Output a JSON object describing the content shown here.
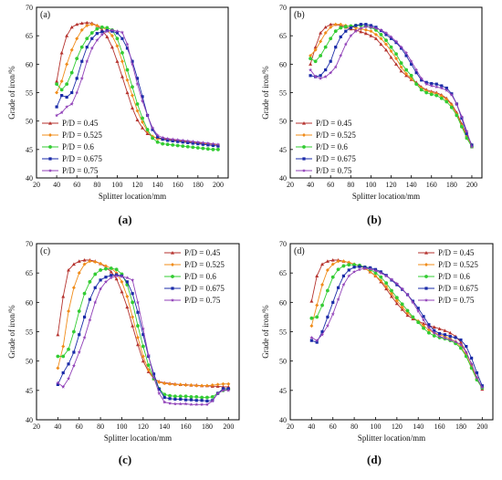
{
  "figure": {
    "captions": [
      "(a)",
      "(b)",
      "(c)",
      "(d)"
    ]
  },
  "chart_data": [
    {
      "type": "line",
      "panel": "(a)",
      "xlabel": "Splitter location/mm",
      "ylabel": "Grade of iron/%",
      "xlim": [
        20,
        210
      ],
      "ylim": [
        40,
        70
      ],
      "xticks": [
        20,
        40,
        60,
        80,
        100,
        120,
        140,
        160,
        180,
        200
      ],
      "yticks": [
        40,
        45,
        50,
        55,
        60,
        65,
        70
      ],
      "legend_position": "lower-left",
      "x": [
        40,
        45,
        50,
        55,
        60,
        65,
        70,
        75,
        80,
        85,
        90,
        95,
        100,
        105,
        110,
        115,
        120,
        125,
        130,
        135,
        140,
        145,
        150,
        155,
        160,
        165,
        170,
        175,
        180,
        185,
        190,
        195,
        200
      ],
      "series": [
        {
          "name": "P/D = 0.45",
          "color": "#b5322d",
          "marker": "triangle",
          "values": [
            57,
            62,
            65,
            66.5,
            67,
            67.2,
            67.3,
            67.2,
            66.8,
            66,
            64.8,
            63,
            60.5,
            57.8,
            55,
            52.3,
            50.2,
            48.8,
            47.8,
            47.3,
            47,
            46.9,
            46.8,
            46.7,
            46.6,
            46.5,
            46.4,
            46.3,
            46.2,
            46.1,
            46,
            45.9,
            45.8
          ]
        },
        {
          "name": "P/D = 0.525",
          "color": "#f08c1a",
          "marker": "diamond",
          "values": [
            55,
            57,
            60,
            62.5,
            64.5,
            66,
            66.8,
            67,
            66.8,
            66.5,
            66,
            65,
            63.2,
            60.5,
            57.2,
            54.5,
            51.8,
            49.8,
            48.2,
            47.3,
            46.9,
            46.8,
            46.7,
            46.6,
            46.5,
            46.4,
            46.3,
            46.2,
            46.1,
            46,
            46,
            45.9,
            45.8
          ]
        },
        {
          "name": "P/D = 0.6",
          "color": "#33cc33",
          "marker": "circle",
          "values": [
            56.5,
            55.5,
            56.5,
            58.5,
            61,
            63,
            64.5,
            65.5,
            66.2,
            66.5,
            66.4,
            66,
            64.5,
            62,
            59,
            56,
            53,
            50.5,
            48.5,
            47,
            46.3,
            46,
            45.9,
            45.8,
            45.7,
            45.6,
            45.5,
            45.4,
            45.3,
            45.2,
            45.1,
            45,
            45
          ]
        },
        {
          "name": "P/D = 0.675",
          "color": "#1a2ba8",
          "marker": "square",
          "values": [
            52.5,
            54.5,
            54.2,
            55,
            57.5,
            60.5,
            63,
            64.5,
            65.4,
            65.7,
            65.9,
            65.8,
            65.5,
            64.5,
            62.8,
            60.5,
            57.5,
            54.3,
            51,
            48.5,
            47.2,
            46.8,
            46.6,
            46.5,
            46.4,
            46.3,
            46.2,
            46.1,
            46,
            45.9,
            45.8,
            45.7,
            45.6
          ]
        },
        {
          "name": "P/D = 0.75",
          "color": "#9040b8",
          "marker": "star",
          "values": [
            51,
            51.5,
            52.5,
            53,
            55,
            57.5,
            60.5,
            62.8,
            64.2,
            65.2,
            65.8,
            66,
            65.8,
            65.6,
            63.5,
            60,
            56.5,
            53.5,
            51,
            48.8,
            47.5,
            47.1,
            46.9,
            46.8,
            46.7,
            46.6,
            46.5,
            46.4,
            46.3,
            46.2,
            46.1,
            46,
            45.9
          ]
        }
      ]
    },
    {
      "type": "line",
      "panel": "(b)",
      "xlabel": "Splitter location/mm",
      "ylabel": "Grade of iron/%",
      "xlim": [
        20,
        210
      ],
      "ylim": [
        40,
        70
      ],
      "xticks": [
        20,
        40,
        60,
        80,
        100,
        120,
        140,
        160,
        180,
        200
      ],
      "yticks": [
        40,
        45,
        50,
        55,
        60,
        65,
        70
      ],
      "legend_position": "lower-left",
      "x": [
        40,
        45,
        50,
        55,
        60,
        65,
        70,
        75,
        80,
        85,
        90,
        95,
        100,
        105,
        110,
        115,
        120,
        125,
        130,
        135,
        140,
        145,
        150,
        155,
        160,
        165,
        170,
        175,
        180,
        185,
        190,
        195,
        200
      ],
      "series": [
        {
          "name": "P/D = 0.45",
          "color": "#b5322d",
          "marker": "triangle",
          "values": [
            60,
            63,
            65.5,
            66.5,
            67,
            67,
            66.8,
            66.5,
            66.2,
            66,
            65.7,
            65.4,
            65,
            64.5,
            63.5,
            62.5,
            61.2,
            60,
            58.8,
            58,
            57.3,
            56.8,
            56,
            55.5,
            55.2,
            55,
            54.6,
            54,
            53,
            51.5,
            49.5,
            47.5,
            45.5
          ]
        },
        {
          "name": "P/D = 0.525",
          "color": "#f08c1a",
          "marker": "diamond",
          "values": [
            61.5,
            62.5,
            64,
            65.5,
            66.5,
            67,
            67,
            66.8,
            66.6,
            66.4,
            66.2,
            66,
            65.8,
            65.2,
            64.5,
            63.5,
            62.3,
            61,
            59.5,
            58.3,
            57.5,
            56.5,
            55.8,
            55.3,
            55,
            54.8,
            54.4,
            53.8,
            52.8,
            51.2,
            49.2,
            47.2,
            45.8
          ]
        },
        {
          "name": "P/D = 0.6",
          "color": "#33cc33",
          "marker": "circle",
          "values": [
            61,
            60.5,
            61.5,
            63,
            64.5,
            65.8,
            66.4,
            66.6,
            66.7,
            66.8,
            66.8,
            66.7,
            66.5,
            66,
            65.2,
            64.2,
            63,
            61.8,
            60.2,
            59,
            58,
            56.5,
            55.5,
            55,
            54.7,
            54.5,
            54,
            53.4,
            52.4,
            51,
            49,
            47,
            45.5
          ]
        },
        {
          "name": "P/D = 0.675",
          "color": "#1a2ba8",
          "marker": "square",
          "values": [
            58,
            57.8,
            58,
            59,
            60.5,
            63,
            64.8,
            65.8,
            66.4,
            66.8,
            67,
            67,
            66.8,
            66.5,
            65.9,
            65.2,
            64.5,
            63.8,
            62.8,
            61.5,
            60,
            58.5,
            57.2,
            56.8,
            56.6,
            56.5,
            56.2,
            55.8,
            54.8,
            53,
            50.5,
            47.8,
            45.8
          ]
        },
        {
          "name": "P/D = 0.75",
          "color": "#9040b8",
          "marker": "star",
          "values": [
            59,
            57.8,
            57.5,
            57.8,
            58.5,
            59.5,
            61.5,
            63.5,
            65,
            65.8,
            66.3,
            66.6,
            66.5,
            66.3,
            66,
            65.5,
            64.8,
            64,
            63,
            62,
            60.5,
            59,
            57.5,
            56.5,
            56.2,
            56,
            55.8,
            55.4,
            54.6,
            53,
            50.8,
            48.2,
            45.5
          ]
        }
      ]
    },
    {
      "type": "line",
      "panel": "(c)",
      "xlabel": "Splitter location/mm",
      "ylabel": "Grade of iron/%",
      "xlim": [
        20,
        210
      ],
      "ylim": [
        40,
        70
      ],
      "xticks": [
        20,
        40,
        60,
        80,
        100,
        120,
        140,
        160,
        180,
        200
      ],
      "yticks": [
        40,
        45,
        50,
        55,
        60,
        65,
        70
      ],
      "legend_position": "top-right",
      "x": [
        40,
        45,
        50,
        55,
        60,
        65,
        70,
        75,
        80,
        85,
        90,
        95,
        100,
        105,
        110,
        115,
        120,
        125,
        130,
        135,
        140,
        145,
        150,
        155,
        160,
        165,
        170,
        175,
        180,
        185,
        190,
        195,
        200
      ],
      "series": [
        {
          "name": "P/D = 0.45",
          "color": "#b5322d",
          "marker": "triangle",
          "values": [
            54.5,
            61,
            65.5,
            66.5,
            67,
            67.2,
            67.2,
            67,
            66.6,
            66,
            65.2,
            64,
            61.8,
            59.2,
            56,
            52.8,
            50,
            48.2,
            47,
            46.5,
            46.3,
            46.2,
            46.1,
            46,
            46,
            45.9,
            45.9,
            45.8,
            45.8,
            45.7,
            45.7,
            45.6,
            45.6
          ]
        },
        {
          "name": "P/D = 0.525",
          "color": "#f08c1a",
          "marker": "diamond",
          "values": [
            48.8,
            52.5,
            58.5,
            62.5,
            65,
            66.5,
            67,
            66.9,
            66.6,
            66.2,
            65.8,
            65,
            63.5,
            61,
            57.5,
            54,
            50.8,
            48.5,
            47,
            46.4,
            46.2,
            46.1,
            46,
            46,
            45.9,
            45.9,
            45.8,
            45.8,
            45.8,
            45.9,
            46,
            46.1,
            46.1
          ]
        },
        {
          "name": "P/D = 0.6",
          "color": "#33cc33",
          "marker": "circle",
          "values": [
            50.8,
            50.8,
            52,
            55,
            58.5,
            61.5,
            63.5,
            64.8,
            65.5,
            65.7,
            65.8,
            65.6,
            64.8,
            63,
            60,
            56,
            52.5,
            49.3,
            47,
            45.3,
            44.3,
            44.1,
            44,
            44,
            44,
            43.9,
            43.9,
            43.8,
            43.8,
            43.9,
            44.5,
            45,
            45.2
          ]
        },
        {
          "name": "P/D = 0.675",
          "color": "#1a2ba8",
          "marker": "square",
          "values": [
            46,
            48,
            49.5,
            51.5,
            54.5,
            57.5,
            60.5,
            62.5,
            63.8,
            64.3,
            64.6,
            64.7,
            64.5,
            63.5,
            61.5,
            58.3,
            54.5,
            50.8,
            47.8,
            45.2,
            43.8,
            43.6,
            43.5,
            43.5,
            43.4,
            43.4,
            43.3,
            43.3,
            43.2,
            43.3,
            44.5,
            45.3,
            45.3
          ]
        },
        {
          "name": "P/D = 0.75",
          "color": "#9040b8",
          "marker": "star",
          "values": [
            46.3,
            45.6,
            47,
            49.2,
            51.5,
            54,
            57,
            60,
            62.3,
            63.5,
            64.2,
            64.5,
            64.4,
            64.2,
            63.8,
            60,
            55.5,
            51,
            47.2,
            44.5,
            43,
            42.8,
            42.7,
            42.7,
            42.7,
            42.6,
            42.6,
            42.6,
            42.6,
            43.2,
            44.5,
            45,
            45
          ]
        }
      ]
    },
    {
      "type": "line",
      "panel": "(d)",
      "xlabel": "Splitter location/mm",
      "ylabel": "Grade of iron/%",
      "xlim": [
        20,
        210
      ],
      "ylim": [
        40,
        70
      ],
      "xticks": [
        20,
        40,
        60,
        80,
        100,
        120,
        140,
        160,
        180,
        200
      ],
      "yticks": [
        40,
        45,
        50,
        55,
        60,
        65,
        70
      ],
      "legend_position": "top-right",
      "x": [
        40,
        45,
        50,
        55,
        60,
        65,
        70,
        75,
        80,
        85,
        90,
        95,
        100,
        105,
        110,
        115,
        120,
        125,
        130,
        135,
        140,
        145,
        150,
        155,
        160,
        165,
        170,
        175,
        180,
        185,
        190,
        195,
        200
      ],
      "series": [
        {
          "name": "P/D = 0.45",
          "color": "#b5322d",
          "marker": "triangle",
          "values": [
            60.2,
            64.5,
            66.5,
            67,
            67.2,
            67.2,
            67,
            66.8,
            66.5,
            66.2,
            65.8,
            65.2,
            64.5,
            63.5,
            62.3,
            61,
            59.8,
            58.8,
            57.8,
            57.2,
            56.8,
            56.4,
            56,
            55.8,
            55.5,
            55.2,
            54.8,
            54.2,
            53.2,
            51.5,
            49.5,
            47.2,
            45.2
          ]
        },
        {
          "name": "P/D = 0.525",
          "color": "#f08c1a",
          "marker": "diamond",
          "values": [
            56,
            59.5,
            63,
            65.5,
            66.5,
            67,
            67,
            66.8,
            66.5,
            66.2,
            65.8,
            65.2,
            64.5,
            63.7,
            62.7,
            61.5,
            60.3,
            59.2,
            58.2,
            57.4,
            56.8,
            56,
            55.3,
            54.8,
            54.5,
            54.2,
            53.8,
            53.3,
            52.4,
            51,
            49,
            47,
            45.5
          ]
        },
        {
          "name": "P/D = 0.6",
          "color": "#33cc33",
          "marker": "circle",
          "values": [
            57.3,
            57.5,
            59.5,
            62,
            64.3,
            65.6,
            66.2,
            66.4,
            66.4,
            66.3,
            66,
            65.6,
            65,
            64.3,
            63.3,
            62,
            60.8,
            59.7,
            58.6,
            57.5,
            56.6,
            55.6,
            54.8,
            54.3,
            54,
            53.8,
            53.5,
            53,
            52.2,
            50.8,
            48.8,
            46.8,
            45.4
          ]
        },
        {
          "name": "P/D = 0.675",
          "color": "#1a2ba8",
          "marker": "square",
          "values": [
            53.5,
            53.2,
            55,
            57.5,
            60,
            62.5,
            64.5,
            65.5,
            66,
            66.1,
            66,
            65.9,
            65.6,
            65.2,
            64.6,
            63.8,
            63,
            62.2,
            61.3,
            60.2,
            59,
            57.6,
            56.2,
            55.2,
            54.7,
            54.5,
            54.2,
            54,
            53.6,
            52.5,
            50.5,
            48,
            45.8
          ]
        },
        {
          "name": "P/D = 0.75",
          "color": "#9040b8",
          "marker": "star",
          "values": [
            54,
            53.5,
            54.5,
            56,
            58,
            60.5,
            63,
            64.5,
            65.2,
            65.6,
            65.8,
            65.7,
            65.4,
            65,
            64.5,
            63.9,
            63.2,
            62.3,
            61.3,
            60,
            58.5,
            57,
            55.7,
            54.8,
            54.2,
            53.9,
            53.6,
            53.3,
            52.8,
            51.5,
            49.5,
            47.2,
            45.5
          ]
        }
      ]
    }
  ]
}
